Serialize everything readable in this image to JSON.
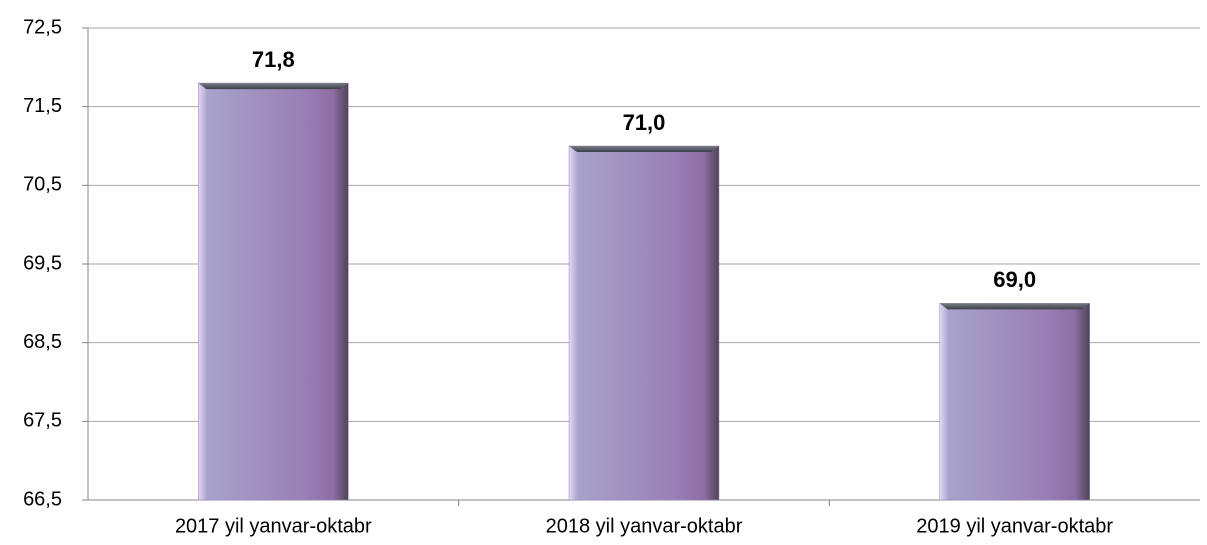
{
  "chart_data": {
    "type": "bar",
    "categories": [
      "2017 yil yanvar-oktabr",
      "2018 yil yanvar-oktabr",
      "2019 yil yanvar-oktabr"
    ],
    "values": [
      71.8,
      71.0,
      69.0
    ],
    "value_labels": [
      "71,8",
      "71,0",
      "69,0"
    ],
    "color": "#9a86b8",
    "ylim": [
      66.5,
      72.5
    ],
    "yticks": [
      {
        "value": 66.5,
        "label": "66,5"
      },
      {
        "value": 67.5,
        "label": "67,5"
      },
      {
        "value": 68.5,
        "label": "68,5"
      },
      {
        "value": 69.5,
        "label": "69,5"
      },
      {
        "value": 70.5,
        "label": "70,5"
      },
      {
        "value": 71.5,
        "label": "71,5"
      },
      {
        "value": 72.5,
        "label": "72,5"
      }
    ],
    "grid": true
  }
}
